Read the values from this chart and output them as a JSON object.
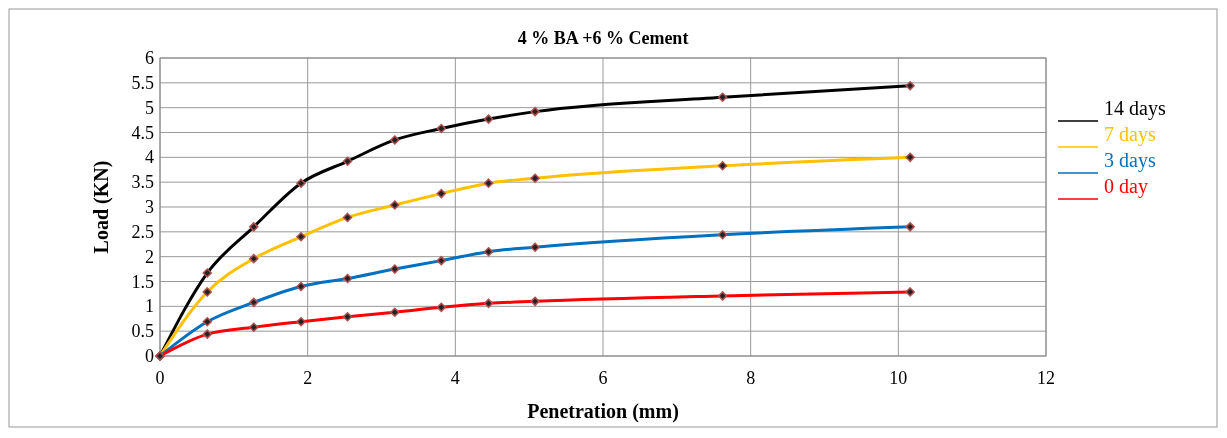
{
  "chart_data": {
    "type": "line",
    "title": "4 % BA +6 % Cement",
    "xlabel": "Penetration (mm)",
    "ylabel": "Load (KN)",
    "x": [
      0,
      0.64,
      1.27,
      1.91,
      2.54,
      3.18,
      3.81,
      4.45,
      5.08,
      7.62,
      10.16
    ],
    "series": [
      {
        "name": "14 days",
        "color": "#000000",
        "values": [
          0,
          1.67,
          2.6,
          3.48,
          3.92,
          4.35,
          4.58,
          4.77,
          4.92,
          5.21,
          5.44
        ]
      },
      {
        "name": "7 days",
        "color": "#ffc000",
        "values": [
          0,
          1.29,
          1.96,
          2.4,
          2.79,
          3.04,
          3.27,
          3.48,
          3.58,
          3.83,
          4.0
        ]
      },
      {
        "name": "3 days",
        "color": "#0070c0",
        "values": [
          0,
          0.69,
          1.08,
          1.4,
          1.56,
          1.75,
          1.92,
          2.1,
          2.19,
          2.44,
          2.6
        ]
      },
      {
        "name": "0 day",
        "color": "#ff0000",
        "values": [
          0,
          0.44,
          0.58,
          0.69,
          0.79,
          0.88,
          0.98,
          1.06,
          1.1,
          1.21,
          1.29
        ]
      }
    ],
    "xlim": [
      0,
      12
    ],
    "xticks": [
      0,
      2,
      4,
      6,
      8,
      10,
      12
    ],
    "ylim": [
      0,
      6
    ],
    "yticks": [
      0,
      0.5,
      1,
      1.5,
      2,
      2.5,
      3,
      3.5,
      4,
      4.5,
      5,
      5.5,
      6
    ],
    "grid": true,
    "legend": "right",
    "marker": "diamond",
    "line_style": "solid"
  }
}
